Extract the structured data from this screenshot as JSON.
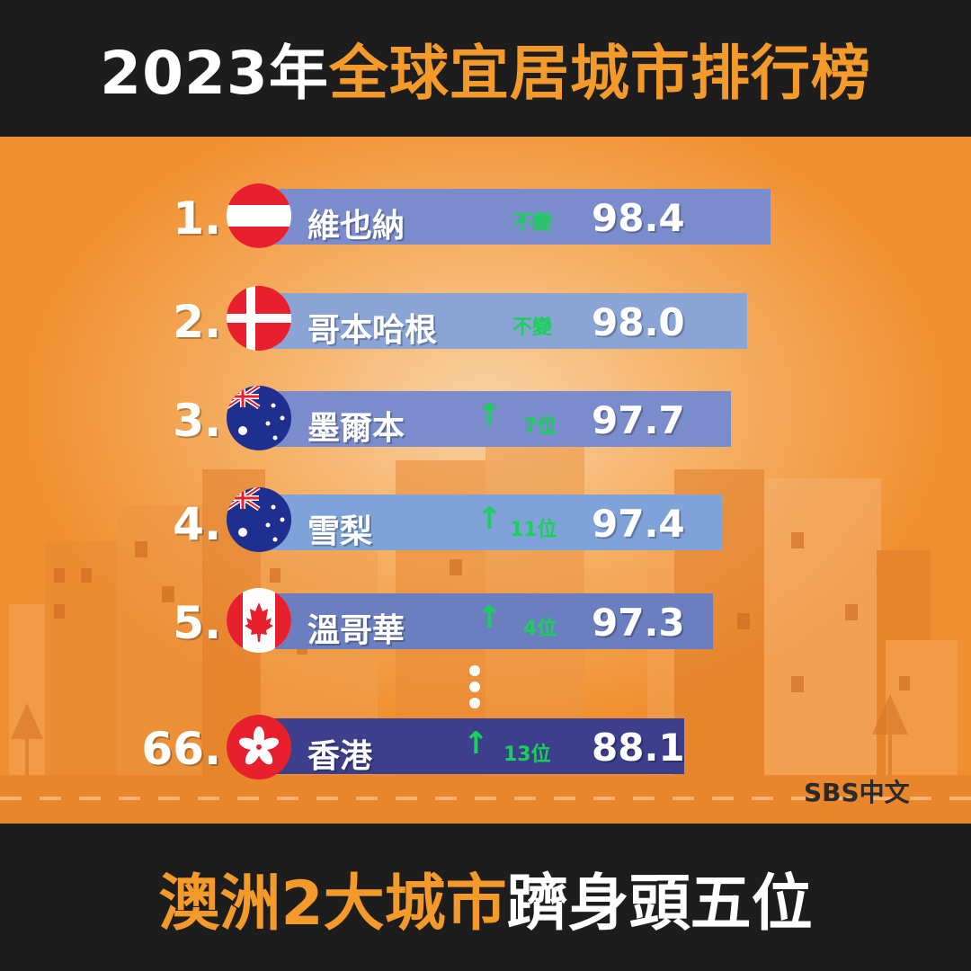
{
  "header": {
    "title_prefix": "2023年",
    "title_highlight": "全球宜居城市排行榜"
  },
  "ranking": [
    {
      "rank": "1.",
      "city": "維也納",
      "change": "不變",
      "direction": "same",
      "score": "98.4",
      "flag": "austria-flag-icon"
    },
    {
      "rank": "2.",
      "city": "哥本哈根",
      "change": "不變",
      "direction": "same",
      "score": "98.0",
      "flag": "denmark-flag-icon"
    },
    {
      "rank": "3.",
      "city": "墨爾本",
      "change": "7位",
      "direction": "up",
      "score": "97.7",
      "flag": "australia-flag-icon"
    },
    {
      "rank": "4.",
      "city": "雪梨",
      "change": "11位",
      "direction": "up",
      "score": "97.4",
      "flag": "australia-flag-icon"
    },
    {
      "rank": "5.",
      "city": "溫哥華",
      "change": "4位",
      "direction": "up",
      "score": "97.3",
      "flag": "canada-flag-icon"
    },
    {
      "rank": "66.",
      "city": "香港",
      "change": "13位",
      "direction": "up",
      "score": "88.1",
      "flag": "hong-kong-flag-icon"
    }
  ],
  "arrow_glyph": "↑",
  "logo": {
    "text": "SBS中文"
  },
  "footer": {
    "highlight": "澳洲2大城市",
    "rest": "躋身頭五位"
  },
  "colors": {
    "accent": "#f39a2b",
    "up_green": "#1bd05a",
    "bar": "#7a8cc8",
    "bar_last": "#3e3f8c"
  }
}
